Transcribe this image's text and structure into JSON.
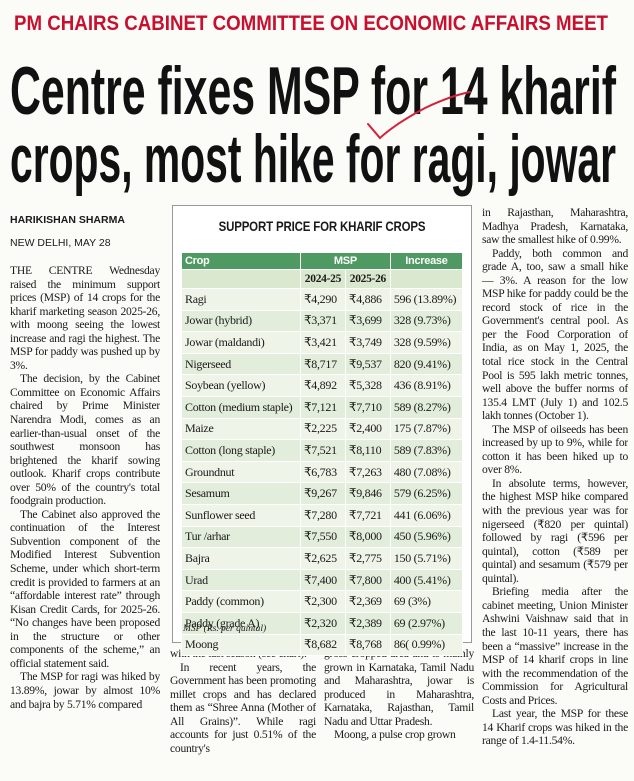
{
  "kicker": "PM CHAIRS CABINET COMMITTEE ON ECONOMIC AFFAIRS MEET",
  "headline": {
    "lines": [
      "Centre fixes MSP for 14 kharif",
      "crops, most hike for ragi, jowar"
    ]
  },
  "byline": {
    "author": "HARIKISHAN SHARMA",
    "dateline": "NEW DELHI, MAY 28"
  },
  "table": {
    "title": "SUPPORT PRICE FOR KHARIF CROPS",
    "header": {
      "crop": "Crop",
      "msp": "MSP",
      "increase": "Increase"
    },
    "subheader": [
      "2024-25",
      "2025-26"
    ],
    "rows": [
      [
        "Ragi",
        "₹4,290",
        "₹4,886",
        "596 (13.89%)"
      ],
      [
        "Jowar (hybrid)",
        "₹3,371",
        "₹3,699",
        "328 (9.73%)"
      ],
      [
        "Jowar (maldandi)",
        "₹3,421",
        "₹3,749",
        "328 (9.59%)"
      ],
      [
        "Nigerseed",
        "₹8,717",
        "₹9,537",
        "820 (9.41%)"
      ],
      [
        "Soybean (yellow)",
        "₹4,892",
        "₹5,328",
        "436 (8.91%)"
      ],
      [
        "Cotton (medium staple)",
        "₹7,121",
        "₹7,710",
        "589 (8.27%)"
      ],
      [
        "Maize",
        "₹2,225",
        "₹2,400",
        "175 (7.87%)"
      ],
      [
        "Cotton (long staple)",
        "₹7,521",
        "₹8,110",
        "589 (7.83%)"
      ],
      [
        "Groundnut",
        "₹6,783",
        "₹7,263",
        "480 (7.08%)"
      ],
      [
        "Sesamum",
        "₹9,267",
        "₹9,846",
        "579 (6.25%)"
      ],
      [
        "Sunflower seed",
        "₹7,280",
        "₹7,721",
        "441 (6.06%)"
      ],
      [
        "Tur /arhar",
        "₹7,550",
        "₹8,000",
        "450 (5.96%)"
      ],
      [
        "Bajra",
        "₹2,625",
        "₹2,775",
        "150 (5.71%)"
      ],
      [
        "Urad",
        "₹7,400",
        "₹7,800",
        "400 (5.41%)"
      ],
      [
        "Paddy (common)",
        "₹2,300",
        "₹2,369",
        "69 (3%)"
      ],
      [
        "Paddy (grade A)",
        "₹2,320",
        "₹2,389",
        "69 (2.97%)"
      ],
      [
        "Moong",
        "₹8,682",
        "₹8,768",
        "86( 0.99%)"
      ]
    ],
    "note": "MSP (Rs. per quintal)"
  },
  "article": {
    "column1": [
      "THE CENTRE Wednesday raised the minimum support prices (MSP) of 14 crops for the kharif marketing season 2025-26, with moong seeing the lowest increase and ragi the highest. The MSP for paddy was pushed up by 3%.",
      "The decision, by the Cabinet Committee on Economic Affairs chaired by Prime Minister Narendra Modi, comes as an earlier-than-usual onset of the southwest monsoon has brightened the kharif sowing outlook. Kharif crops contribute over 50% of the country's total foodgrain production.",
      "The Cabinet also approved the continuation of the Interest Subvention component of the Modified Interest Subvention Scheme, under which short-term credit is provided to farmers at an “affordable interest rate” through Kisan Credit Cards, for 2025-26. “No changes have been proposed in the structure or other components of the scheme,” an official statement said.",
      "The MSP for ragi was hiked by 13.89%, jowar by almost 10% and bajra by 5.71% compared"
    ],
    "column2": [
      "with the last season (see chart).",
      "In recent years, the Government has been promoting millet crops and has declared them as “Shree Anna (Mother of All Grains)”. While ragi accounts for just 0.51% of the country's"
    ],
    "column3": [
      "gross cropped area and is mainly grown in Karnataka, Tamil Nadu and Maharashtra, jowar is produced in Maharashtra, Karnataka, Rajasthan, Tamil Nadu and Uttar Pradesh.",
      "Moong, a pulse crop grown"
    ],
    "column4": [
      "in Rajasthan, Maharashtra, Madhya Pradesh, Karnataka, saw the smallest hike of 0.99%.",
      "Paddy, both common and grade A, too, saw a small hike — 3%. A reason for the low MSP hike for paddy could be the record stock of rice in the Government's central pool. As per the Food Corporation of India, as on May 1, 2025, the total rice stock in the Central Pool is 595 lakh metric tonnes, well above the buffer norms of 135.4 LMT (July 1) and 102.5 lakh tonnes (October 1).",
      "The MSP of oilseeds has been increased by up to 9%, while for cotton it has been hiked up to over 8%.",
      "In absolute terms, however, the highest MSP hike compared with the previous year was for nigerseed (₹820 per quintal) followed by ragi (₹596 per quintal), cotton (₹589 per quintal) and sesamum (₹579 per quintal).",
      "Briefing media after the cabinet meeting, Union Minister Ashwini Vaishnaw said that in the last 10-11 years, there has been a “massive” increase in the MSP of 14 kharif crops in line with the recommendation of the Commission for Agricultural Costs and Prices.",
      "Last year, the MSP for these 14 Kharif crops was hiked in the range of 1.4-11.54%."
    ]
  }
}
